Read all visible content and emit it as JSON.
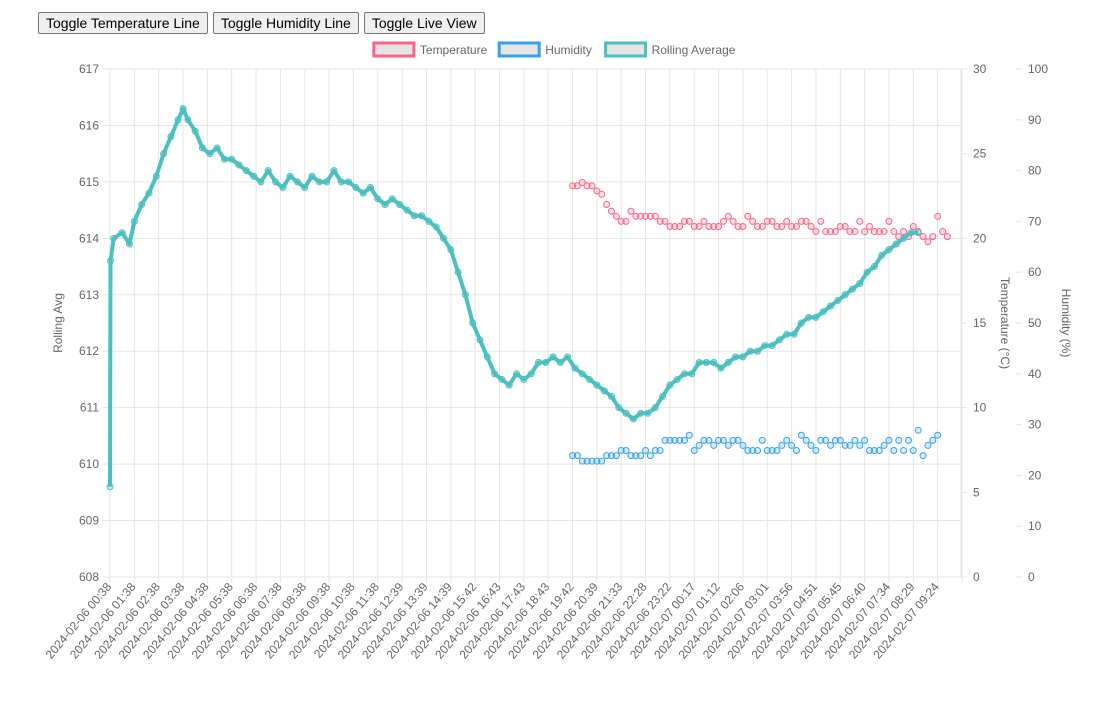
{
  "toolbar": {
    "temp_label": "Toggle Temperature Line",
    "hum_label": "Toggle Humidity Line",
    "live_label": "Toggle Live View"
  },
  "chart_data": {
    "type": "line",
    "legend": {
      "position": "top"
    },
    "grid": true,
    "x_tick_labels": [
      "2024-02-06 00:38",
      "2024-02-06 01:38",
      "2024-02-06 02:38",
      "2024-02-06 03:38",
      "2024-02-06 04:38",
      "2024-02-06 05:38",
      "2024-02-06 06:38",
      "2024-02-06 07:38",
      "2024-02-06 08:38",
      "2024-02-06 09:38",
      "2024-02-06 10:38",
      "2024-02-06 11:38",
      "2024-02-06 12:39",
      "2024-02-06 13:39",
      "2024-02-06 14:39",
      "2024-02-06 15:42",
      "2024-02-06 16:43",
      "2024-02-06 17:43",
      "2024-02-06 18:43",
      "2024-02-06 19:42",
      "2024-02-06 20:39",
      "2024-02-06 21:33",
      "2024-02-06 22:28",
      "2024-02-06 23:22",
      "2024-02-07 00:17",
      "2024-02-07 01:12",
      "2024-02-07 02:06",
      "2024-02-07 03:01",
      "2024-02-07 03:56",
      "2024-02-07 04:51",
      "2024-02-07 05:45",
      "2024-02-07 06:40",
      "2024-02-07 07:34",
      "2024-02-07 08:29",
      "2024-02-07 09:24"
    ],
    "axes": {
      "rolling": {
        "label": "Rolling Avg",
        "min": 608,
        "max": 617,
        "step": 1
      },
      "temperature": {
        "label": "Temperature (°C)",
        "min": 0,
        "max": 30,
        "step": 5
      },
      "humidity": {
        "label": "Humidity (%)",
        "min": 0,
        "max": 100,
        "step": 10
      }
    },
    "series": [
      {
        "name": "Temperature",
        "axis": "temperature",
        "color": "#ff6384",
        "points": [
          [
            19.0,
            23.1
          ],
          [
            19.2,
            23.1
          ],
          [
            19.4,
            23.3
          ],
          [
            19.6,
            23.1
          ],
          [
            19.8,
            23.1
          ],
          [
            20.0,
            22.8
          ],
          [
            20.2,
            22.6
          ],
          [
            20.4,
            22.0
          ],
          [
            20.6,
            21.6
          ],
          [
            20.8,
            21.3
          ],
          [
            21.0,
            21.0
          ],
          [
            21.2,
            21.0
          ],
          [
            21.4,
            21.6
          ],
          [
            21.6,
            21.3
          ],
          [
            21.8,
            21.3
          ],
          [
            22.0,
            21.3
          ],
          [
            22.2,
            21.3
          ],
          [
            22.4,
            21.3
          ],
          [
            22.6,
            21.0
          ],
          [
            22.8,
            21.0
          ],
          [
            23.0,
            20.7
          ],
          [
            23.2,
            20.7
          ],
          [
            23.4,
            20.7
          ],
          [
            23.6,
            21.0
          ],
          [
            23.8,
            21.0
          ],
          [
            24.0,
            20.7
          ],
          [
            24.2,
            20.7
          ],
          [
            24.4,
            21.0
          ],
          [
            24.6,
            20.7
          ],
          [
            24.8,
            20.7
          ],
          [
            25.0,
            20.7
          ],
          [
            25.2,
            21.0
          ],
          [
            25.4,
            21.3
          ],
          [
            25.6,
            21.0
          ],
          [
            25.8,
            20.7
          ],
          [
            26.0,
            20.7
          ],
          [
            26.2,
            21.3
          ],
          [
            26.4,
            21.0
          ],
          [
            26.6,
            20.7
          ],
          [
            26.8,
            20.7
          ],
          [
            27.0,
            21.0
          ],
          [
            27.2,
            21.0
          ],
          [
            27.4,
            20.7
          ],
          [
            27.6,
            20.7
          ],
          [
            27.8,
            21.0
          ],
          [
            28.0,
            20.7
          ],
          [
            28.2,
            20.7
          ],
          [
            28.4,
            21.0
          ],
          [
            28.6,
            21.0
          ],
          [
            28.8,
            20.7
          ],
          [
            29.0,
            20.4
          ],
          [
            29.2,
            21.0
          ],
          [
            29.4,
            20.4
          ],
          [
            29.6,
            20.4
          ],
          [
            29.8,
            20.4
          ],
          [
            30.0,
            20.7
          ],
          [
            30.2,
            20.7
          ],
          [
            30.4,
            20.4
          ],
          [
            30.6,
            20.4
          ],
          [
            30.8,
            21.0
          ],
          [
            31.0,
            20.4
          ],
          [
            31.2,
            20.7
          ],
          [
            31.4,
            20.4
          ],
          [
            31.6,
            20.4
          ],
          [
            31.8,
            20.4
          ],
          [
            32.0,
            21.0
          ],
          [
            32.2,
            20.4
          ],
          [
            32.4,
            20.1
          ],
          [
            32.6,
            20.4
          ],
          [
            32.8,
            20.1
          ],
          [
            33.0,
            20.7
          ],
          [
            33.2,
            20.4
          ],
          [
            33.4,
            20.1
          ],
          [
            33.6,
            19.8
          ],
          [
            33.8,
            20.1
          ],
          [
            34.0,
            21.3
          ],
          [
            34.2,
            20.4
          ],
          [
            34.4,
            20.1
          ]
        ]
      },
      {
        "name": "Humidity",
        "axis": "humidity",
        "color": "#36a2eb",
        "points": [
          [
            19.0,
            23.9
          ],
          [
            19.2,
            23.9
          ],
          [
            19.4,
            22.8
          ],
          [
            19.6,
            22.8
          ],
          [
            19.8,
            22.8
          ],
          [
            20.0,
            22.8
          ],
          [
            20.2,
            22.8
          ],
          [
            20.4,
            23.9
          ],
          [
            20.6,
            23.9
          ],
          [
            20.8,
            23.9
          ],
          [
            21.0,
            24.9
          ],
          [
            21.2,
            24.9
          ],
          [
            21.4,
            23.9
          ],
          [
            21.6,
            23.9
          ],
          [
            21.8,
            23.9
          ],
          [
            22.0,
            24.9
          ],
          [
            22.2,
            23.9
          ],
          [
            22.4,
            24.9
          ],
          [
            22.6,
            24.9
          ],
          [
            22.8,
            26.9
          ],
          [
            23.0,
            26.9
          ],
          [
            23.2,
            26.9
          ],
          [
            23.4,
            26.9
          ],
          [
            23.6,
            26.9
          ],
          [
            23.8,
            27.9
          ],
          [
            24.0,
            24.9
          ],
          [
            24.2,
            25.9
          ],
          [
            24.4,
            26.9
          ],
          [
            24.6,
            26.9
          ],
          [
            24.8,
            25.9
          ],
          [
            25.0,
            26.9
          ],
          [
            25.2,
            26.9
          ],
          [
            25.4,
            25.9
          ],
          [
            25.6,
            26.9
          ],
          [
            25.8,
            26.9
          ],
          [
            26.0,
            25.9
          ],
          [
            26.2,
            24.9
          ],
          [
            26.4,
            24.9
          ],
          [
            26.6,
            24.9
          ],
          [
            26.8,
            26.9
          ],
          [
            27.0,
            24.9
          ],
          [
            27.2,
            24.9
          ],
          [
            27.4,
            24.9
          ],
          [
            27.6,
            25.9
          ],
          [
            27.8,
            26.9
          ],
          [
            28.0,
            25.9
          ],
          [
            28.2,
            24.9
          ],
          [
            28.4,
            27.9
          ],
          [
            28.6,
            26.9
          ],
          [
            28.8,
            25.9
          ],
          [
            29.0,
            24.9
          ],
          [
            29.2,
            26.9
          ],
          [
            29.4,
            26.9
          ],
          [
            29.6,
            25.9
          ],
          [
            29.8,
            26.9
          ],
          [
            30.0,
            26.9
          ],
          [
            30.2,
            25.9
          ],
          [
            30.4,
            25.9
          ],
          [
            30.6,
            26.9
          ],
          [
            30.8,
            25.9
          ],
          [
            31.0,
            26.9
          ],
          [
            31.2,
            24.9
          ],
          [
            31.4,
            24.9
          ],
          [
            31.6,
            24.9
          ],
          [
            31.8,
            25.9
          ],
          [
            32.0,
            26.9
          ],
          [
            32.2,
            24.9
          ],
          [
            32.4,
            26.9
          ],
          [
            32.6,
            24.9
          ],
          [
            32.8,
            26.9
          ],
          [
            33.0,
            24.9
          ],
          [
            33.2,
            28.9
          ],
          [
            33.4,
            23.9
          ],
          [
            33.6,
            25.9
          ],
          [
            33.8,
            26.9
          ],
          [
            34.0,
            27.9
          ]
        ]
      },
      {
        "name": "Rolling Average",
        "axis": "rolling",
        "color": "#4bc0c0",
        "points": [
          [
            0.0,
            609.6
          ],
          [
            0.02,
            613.6
          ],
          [
            0.15,
            614.0
          ],
          [
            0.5,
            614.1
          ],
          [
            0.8,
            613.9
          ],
          [
            1.0,
            614.3
          ],
          [
            1.3,
            614.6
          ],
          [
            1.6,
            614.8
          ],
          [
            1.9,
            615.1
          ],
          [
            2.2,
            615.5
          ],
          [
            2.5,
            615.8
          ],
          [
            2.8,
            616.1
          ],
          [
            3.0,
            616.3
          ],
          [
            3.2,
            616.1
          ],
          [
            3.5,
            615.9
          ],
          [
            3.8,
            615.6
          ],
          [
            4.1,
            615.5
          ],
          [
            4.4,
            615.6
          ],
          [
            4.7,
            615.4
          ],
          [
            5.0,
            615.4
          ],
          [
            5.3,
            615.3
          ],
          [
            5.6,
            615.2
          ],
          [
            5.9,
            615.1
          ],
          [
            6.2,
            615.0
          ],
          [
            6.5,
            615.2
          ],
          [
            6.8,
            615.0
          ],
          [
            7.1,
            614.9
          ],
          [
            7.4,
            615.1
          ],
          [
            7.7,
            615.0
          ],
          [
            8.0,
            614.9
          ],
          [
            8.3,
            615.1
          ],
          [
            8.6,
            615.0
          ],
          [
            8.9,
            615.0
          ],
          [
            9.2,
            615.2
          ],
          [
            9.5,
            615.0
          ],
          [
            9.8,
            615.0
          ],
          [
            10.1,
            614.9
          ],
          [
            10.4,
            614.8
          ],
          [
            10.7,
            614.9
          ],
          [
            11.0,
            614.7
          ],
          [
            11.3,
            614.6
          ],
          [
            11.6,
            614.7
          ],
          [
            11.9,
            614.6
          ],
          [
            12.2,
            614.5
          ],
          [
            12.5,
            614.4
          ],
          [
            12.8,
            614.4
          ],
          [
            13.1,
            614.3
          ],
          [
            13.4,
            614.2
          ],
          [
            13.7,
            614.0
          ],
          [
            14.0,
            613.8
          ],
          [
            14.3,
            613.4
          ],
          [
            14.6,
            613.0
          ],
          [
            14.9,
            612.5
          ],
          [
            15.2,
            612.2
          ],
          [
            15.5,
            611.9
          ],
          [
            15.8,
            611.6
          ],
          [
            16.1,
            611.5
          ],
          [
            16.4,
            611.4
          ],
          [
            16.7,
            611.6
          ],
          [
            17.0,
            611.5
          ],
          [
            17.3,
            611.6
          ],
          [
            17.6,
            611.8
          ],
          [
            17.9,
            611.8
          ],
          [
            18.2,
            611.9
          ],
          [
            18.5,
            611.8
          ],
          [
            18.8,
            611.9
          ],
          [
            19.1,
            611.7
          ],
          [
            19.4,
            611.6
          ],
          [
            19.7,
            611.5
          ],
          [
            20.0,
            611.4
          ],
          [
            20.3,
            611.3
          ],
          [
            20.6,
            611.2
          ],
          [
            20.9,
            611.0
          ],
          [
            21.2,
            610.9
          ],
          [
            21.5,
            610.8
          ],
          [
            21.8,
            610.9
          ],
          [
            22.1,
            610.9
          ],
          [
            22.4,
            611.0
          ],
          [
            22.7,
            611.2
          ],
          [
            23.0,
            611.4
          ],
          [
            23.3,
            611.5
          ],
          [
            23.6,
            611.6
          ],
          [
            23.9,
            611.6
          ],
          [
            24.2,
            611.8
          ],
          [
            24.5,
            611.8
          ],
          [
            24.8,
            611.8
          ],
          [
            25.1,
            611.7
          ],
          [
            25.4,
            611.8
          ],
          [
            25.7,
            611.9
          ],
          [
            26.0,
            611.9
          ],
          [
            26.3,
            612.0
          ],
          [
            26.6,
            612.0
          ],
          [
            26.9,
            612.1
          ],
          [
            27.2,
            612.1
          ],
          [
            27.5,
            612.2
          ],
          [
            27.8,
            612.3
          ],
          [
            28.1,
            612.3
          ],
          [
            28.4,
            612.5
          ],
          [
            28.7,
            612.6
          ],
          [
            29.0,
            612.6
          ],
          [
            29.3,
            612.7
          ],
          [
            29.6,
            612.8
          ],
          [
            29.9,
            612.9
          ],
          [
            30.2,
            613.0
          ],
          [
            30.5,
            613.1
          ],
          [
            30.8,
            613.2
          ],
          [
            31.1,
            613.4
          ],
          [
            31.4,
            613.5
          ],
          [
            31.7,
            613.7
          ],
          [
            32.0,
            613.8
          ],
          [
            32.3,
            613.9
          ],
          [
            32.6,
            614.0
          ],
          [
            32.9,
            614.1
          ],
          [
            33.2,
            614.1
          ]
        ]
      }
    ]
  }
}
